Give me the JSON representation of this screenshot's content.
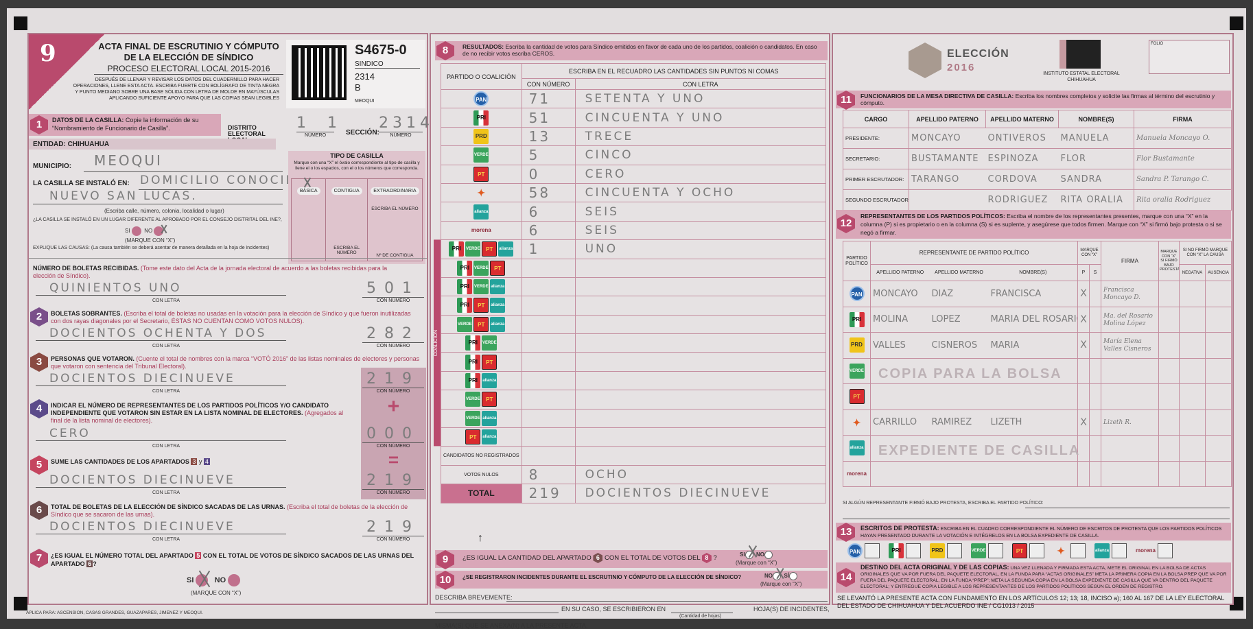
{
  "header": {
    "acta_number": "9",
    "title_line1": "ACTA FINAL DE ESCRUTINIO Y CÓMPUTO",
    "title_line2": "DE LA ELECCIÓN DE SÍNDICO",
    "subtitle": "PROCESO ELECTORAL LOCAL 2015-2016",
    "instructions": "DESPUÉS DE LLENAR Y REVISAR LOS DATOS DEL CUADERNILLO PARA HACER OPERACIONES, LLENE ESTA ACTA. ESCRIBA FUERTE CON BOLÍGRAFO DE TINTA NEGRA Y PUNTO MEDIANO SOBRE UNA BASE SÓLIDA CON LETRA DE MOLDE EN MAYÚSCULAS APLICANDO SUFICIENTE APOYO PARA QUE LAS COPIAS SEAN LEGIBLES",
    "code": "S4675-0",
    "election": "SINDICO",
    "section_code": "2314",
    "casilla_type": "B",
    "municipality_code": "MEOQUI"
  },
  "s1": {
    "num": "1",
    "title": "DATOS DE LA CASILLA:",
    "text": "Copie la información de su “Nombramiento de Funcionario de Casilla”.",
    "distrito_label": "DISTRITO ELECTORAL LOCAL:",
    "distrito": "1 1",
    "numero_caption": "NÚMERO",
    "seccion_label": "SECCIÓN:",
    "seccion": "2314",
    "entidad_label": "ENTIDAD:",
    "entidad": "CHIHUAHUA",
    "municipio_label": "MUNICIPIO:",
    "municipio": "MEOQUI",
    "instalo_label": "LA CASILLA SE INSTALÓ EN:",
    "instalo_line1": "DOMICILIO CONOCIDO",
    "instalo_line2": "NUEVO SAN LUCAS.",
    "address_hint": "(Escriba calle, número, colonia, localidad o lugar)",
    "diferente_q": "¿LA CASILLA SE INSTALÓ EN UN LUGAR DIFERENTE AL APROBADO POR EL CONSEJO DISTRITAL DEL INE?,",
    "si": "SI",
    "no": "NO",
    "marque": "(MARQUE CON “X”)",
    "selected": "NO",
    "explique": "EXPLIQUE LAS CAUSAS:",
    "explique_hint": "(La causa también se deberá asentar de manera detallada en la hoja de incidentes)",
    "tipo_title": "TIPO DE CASILLA",
    "tipo_hint": "Marque con una “X” el óvalo correspondiente al tipo de casilla y llene el o los espacios, con el o los números que corresponda.",
    "tipo_basica": "BÁSICA",
    "tipo_contigua": "CONTIGUA",
    "tipo_extra": "EXTRAORDINARIA",
    "tipo_selected": "BÁSICA",
    "escriba_numero": "ESCRIBA EL NÚMERO",
    "escriba_numero2": "ESCRIBA EL NÚMERO",
    "n_contigua": "Nº DE CONTIGUA"
  },
  "con_letra": "CON LETRA",
  "con_numero": "CON NÚMERO",
  "boletas": {
    "title": "NÚMERO DE BOLETAS RECIBIDAS.",
    "note": "(Tome este dato del Acta de la jornada electoral de acuerdo a las boletas recibidas para la elección de Síndico).",
    "letra": "QUINIENTOS UNO",
    "numero": "501"
  },
  "s2": {
    "num": "2",
    "title": "BOLETAS SOBRANTES.",
    "note": "(Escriba el total de boletas no usadas en la votación para la elección de Síndico y que fueron inutilizadas con dos rayas diagonales por el Secretario, ÉSTAS NO CUENTAN COMO VOTOS NULOS).",
    "letra": "DOCIENTOS OCHENTA Y DOS",
    "numero": "282"
  },
  "s3": {
    "num": "3",
    "title": "PERSONAS QUE VOTARON.",
    "note": "(Cuente el total de nombres con la marca “VOTÓ 2016” de las listas nominales de electores y personas que votaron con sentencia del Tribunal Electoral).",
    "letra": "DOCIENTOS DIECINUEVE",
    "numero": "219"
  },
  "s4": {
    "num": "4",
    "title": "INDICAR EL NÚMERO DE REPRESENTANTES DE LOS PARTIDOS POLÍTICOS Y/O CANDIDATO INDEPENDIENTE QUE VOTARON SIN ESTAR EN LA LISTA NOMINAL DE ELECTORES.",
    "note": "(Agregados al final de la lista nominal de electores).",
    "letra": "CERO",
    "numero": "000"
  },
  "s5": {
    "num": "5",
    "title": "SUME LAS CANTIDADES DE LOS APARTADOS",
    "ref_a": "3",
    "and": "y",
    "ref_b": "4",
    "letra": "DOCIENTOS DIECINUEVE",
    "numero": "219"
  },
  "s6": {
    "num": "6",
    "title": "TOTAL DE BOLETAS DE LA ELECCIÓN DE SÍNDICO SACADAS DE LAS URNAS.",
    "note": "(Escriba el total de boletas de la elección de Síndico que se sacaron de las urnas).",
    "letra": "DOCIENTOS DIECINUEVE",
    "numero": "219"
  },
  "s7": {
    "num": "7",
    "q1": "¿ES IGUAL EL NÚMERO TOTAL DEL APARTADO",
    "ref_a": "5",
    "q2": "CON EL TOTAL DE VOTOS DE SÍNDICO SACADOS DE LAS URNAS DEL APARTADO",
    "ref_b": "6",
    "q3": "?",
    "si": "SI",
    "no": "NO",
    "marque": "(MARQUE CON “X”)",
    "selected": "SI"
  },
  "calc": {
    "plus": "+",
    "equals": "="
  },
  "footer_left": "APLICA PARA: ASCENSION, CASAS GRANDES, GUAZAPARES, JIMENEZ Y MEOQUI.",
  "s8": {
    "num": "8",
    "title": "RESULTADOS:",
    "text": "Escriba la cantidad de votos para Síndico emitidos en favor de cada uno de los partidos, coalición o candidatos. En caso de no recibir votos escriba CEROS.",
    "col_party": "PARTIDO O COALICIÓN",
    "col_instr": "ESCRIBA EN EL RECUADRO LAS CANTIDADES SIN PUNTOS NI COMAS",
    "col_num": "CON NÚMERO",
    "col_letra": "CON LETRA",
    "coalicion_label": "COALICIÓN",
    "rows": [
      {
        "parties": [
          "pan"
        ],
        "numero": "71",
        "letra": "SETENTA Y UNO"
      },
      {
        "parties": [
          "pri"
        ],
        "numero": "51",
        "letra": "CINCUENTA Y UNO"
      },
      {
        "parties": [
          "prd"
        ],
        "numero": "13",
        "letra": "TRECE"
      },
      {
        "parties": [
          "verde"
        ],
        "numero": "5",
        "letra": "CINCO"
      },
      {
        "parties": [
          "pt"
        ],
        "numero": "0",
        "letra": "CERO"
      },
      {
        "parties": [
          "mc"
        ],
        "numero": "58",
        "letra": "CINCUENTA Y OCHO"
      },
      {
        "parties": [
          "na"
        ],
        "numero": "6",
        "letra": "SEIS"
      },
      {
        "parties": [
          "morena"
        ],
        "numero": "6",
        "letra": "SEIS"
      },
      {
        "parties": [
          "pri",
          "verde",
          "pt",
          "na"
        ],
        "numero": "1",
        "letra": "UNO",
        "coalition": true
      },
      {
        "parties": [
          "pri",
          "verde",
          "pt"
        ],
        "numero": "",
        "letra": "",
        "coalition": true
      },
      {
        "parties": [
          "pri",
          "verde",
          "na"
        ],
        "numero": "",
        "letra": "",
        "coalition": true
      },
      {
        "parties": [
          "pri",
          "pt",
          "na"
        ],
        "numero": "",
        "letra": "",
        "coalition": true
      },
      {
        "parties": [
          "verde",
          "pt",
          "na"
        ],
        "numero": "",
        "letra": "",
        "coalition": true
      },
      {
        "parties": [
          "pri",
          "verde"
        ],
        "numero": "",
        "letra": "",
        "coalition": true
      },
      {
        "parties": [
          "pri",
          "pt"
        ],
        "numero": "",
        "letra": "",
        "coalition": true
      },
      {
        "parties": [
          "pri",
          "na"
        ],
        "numero": "",
        "letra": "",
        "coalition": true
      },
      {
        "parties": [
          "verde",
          "pt"
        ],
        "numero": "",
        "letra": "",
        "coalition": true
      },
      {
        "parties": [
          "verde",
          "na"
        ],
        "numero": "",
        "letra": "",
        "coalition": true
      },
      {
        "parties": [
          "pt",
          "na"
        ],
        "numero": "",
        "letra": "",
        "coalition": true
      },
      {
        "label": "CANDIDATOS NO REGISTRADOS",
        "numero": "",
        "letra": ""
      },
      {
        "label": "VOTOS NULOS",
        "numero": "8",
        "letra": "OCHO"
      },
      {
        "label": "TOTAL",
        "numero": "219",
        "letra": "DOCIENTOS DIECINUEVE",
        "total": true
      }
    ]
  },
  "parties": {
    "pan": {
      "text": "PAN",
      "color": "#2560a8"
    },
    "pri": {
      "text": "PRI",
      "color": "#2e9a56"
    },
    "prd": {
      "text": "PRD",
      "color": "#f0c419"
    },
    "verde": {
      "text": "VERDE",
      "color": "#3ba45d"
    },
    "pt": {
      "text": "PT",
      "color": "#d92b2f"
    },
    "mc": {
      "text": "✦",
      "color": "#e05a1f"
    },
    "na": {
      "text": "alianza",
      "color": "#23a39c"
    },
    "morena": {
      "text": "morena",
      "color": "#8c2a3a"
    }
  },
  "s9": {
    "num": "9",
    "q1": "¿ES IGUAL LA CANTIDAD DEL APARTADO",
    "ref_a": "6",
    "q2": "CON EL TOTAL DE VOTOS DEL",
    "ref_b": "8",
    "q3": "?",
    "si": "SI",
    "no": "NO",
    "marque": "(Marque con “X”)",
    "selected": "SI"
  },
  "s10": {
    "num": "10",
    "q": "¿SE REGISTRARON INCIDENTES DURANTE EL ESCRUTINIO Y CÓMPUTO DE LA ELECCIÓN DE SÍNDICO?",
    "no": "NO",
    "si": "SÍ",
    "marque": "(Marque con “X”)",
    "selected": "NO",
    "describa": "DESCRIBA BREVEMENTE:",
    "en_su_caso": "EN SU CASO, SE ESCRIBIERON EN",
    "hojas": "HOJA(S) DE INCIDENTES,",
    "cantidad": "(Cantidad de hojas)",
    "misma": "MISMA(S) QUE SE ANEXA(N) A LA PRESENTE ACTA."
  },
  "logos": {
    "eleccion": "ELECCIÓN",
    "year": "2016",
    "iee_line1": "INSTITUTO ESTATAL ELECTORAL",
    "iee_line2": "CHIHUAHUA",
    "folio": "FOLIO"
  },
  "s11": {
    "num": "11",
    "title": "FUNCIONARIOS DE LA MESA DIRECTIVA DE CASILLA:",
    "text": "Escriba los nombres completos y solicite las firmas al término del escrutinio y cómputo.",
    "headers": [
      "CARGO",
      "APELLIDO PATERNO",
      "APELLIDO MATERNO",
      "NOMBRE(S)",
      "FIRMA"
    ],
    "rows": [
      {
        "cargo": "PRESIDENTE:",
        "paterno": "MONCAYO",
        "materno": "ONTIVEROS",
        "nombre": "MANUELA",
        "firma": "Manuela Moncayo O."
      },
      {
        "cargo": "SECRETARIO:",
        "paterno": "BUSTAMANTE",
        "materno": "ESPINOZA",
        "nombre": "FLOR",
        "firma": "Flor Bustamante"
      },
      {
        "cargo": "PRIMER ESCRUTADOR:",
        "paterno": "TARANGO",
        "materno": "CORDOVA",
        "nombre": "SANDRA",
        "firma": "Sandra P. Tarango C."
      },
      {
        "cargo": "SEGUNDO ESCRUTADOR:",
        "paterno": "",
        "materno": "RODRIGUEZ",
        "nombre": "RITA ORALIA",
        "firma": "Rita oralia Rodriguez"
      }
    ]
  },
  "s12": {
    "num": "12",
    "title": "REPRESENTANTES DE LOS PARTIDOS POLÍTICOS:",
    "text": "Escriba el nombre de los representantes presentes, marque con una “X” en la columna (P) si es propietario o en la columna (S) si es suplente, y asegúrese que todos firmen. Marque con “X” si firmó bajo protesta o si se negó a firmar.",
    "h_partido": "PARTIDO POLÍTICO",
    "h_rep": "REPRESENTANTE DE PARTIDO POLÍTICO",
    "h_paterno": "APELLIDO PATERNO",
    "h_materno": "APELLIDO MATERNO",
    "h_nombre": "NOMBRE(S)",
    "h_marque": "MARQUE CON “X”",
    "h_p": "P",
    "h_s": "S",
    "h_firma": "FIRMA",
    "h_protesta": "MARQUE CON “X” SI FIRMÓ BAJO PROTESTA",
    "h_nofirmo": "SI NO FIRMÓ MARQUE CON “X” LA CAUSA",
    "h_negativa": "NEGATIVA",
    "h_ausencia": "AUSENCIA",
    "rows": [
      {
        "party": "pan",
        "paterno": "MONCAYO",
        "materno": "DIAZ",
        "nombre": "FRANCISCA",
        "p": "X",
        "s": "",
        "firma": "Francisca Moncayo D."
      },
      {
        "party": "pri",
        "paterno": "MOLINA",
        "materno": "LOPEZ",
        "nombre": "MARIA DEL ROSARIO",
        "p": "X",
        "s": "",
        "firma": "Ma. del Rosario Molina López"
      },
      {
        "party": "prd",
        "paterno": "VALLES",
        "materno": "CISNEROS",
        "nombre": "MARIA",
        "p": "X",
        "s": "",
        "firma": "María Elena Valles Cisneros"
      },
      {
        "party": "verde",
        "paterno": "",
        "materno": "",
        "nombre": "",
        "p": "",
        "s": "",
        "firma": ""
      },
      {
        "party": "pt",
        "paterno": "",
        "materno": "",
        "nombre": "",
        "p": "",
        "s": "",
        "firma": ""
      },
      {
        "party": "mc",
        "paterno": "CARRILLO",
        "materno": "RAMIREZ",
        "nombre": "LIZETH",
        "p": "X",
        "s": "",
        "firma": "Lizeth R."
      },
      {
        "party": "na",
        "paterno": "",
        "materno": "",
        "nombre": "",
        "p": "",
        "s": "",
        "firma": ""
      },
      {
        "party": "morena",
        "paterno": "",
        "materno": "",
        "nombre": "",
        "p": "",
        "s": "",
        "firma": ""
      }
    ],
    "watermark_line1": "COPIA PARA LA BOLSA",
    "watermark_line2": "EXPEDIENTE DE CASILLA",
    "protesta_line": "SI ALGÚN REPRESENTANTE FIRMÓ BAJO PROTESTA, ESCRIBA EL PARTIDO POLÍTICO:"
  },
  "s13": {
    "num": "13",
    "title": "ESCRITOS DE PROTESTA:",
    "text": "ESCRIBA EN EL CUADRO CORRESPONDIENTE EL NÚMERO DE ESCRITOS DE PROTESTA QUE LOS PARTIDOS POLÍTICOS HAYAN PRESENTADO DURANTE LA VOTACIÓN E INTÉGRELOS EN LA BOLSA EXPEDIENTE DE CASILLA.",
    "parties": [
      "pan",
      "pri",
      "prd",
      "verde",
      "pt",
      "mc",
      "na",
      "morena"
    ]
  },
  "s14": {
    "num": "14",
    "title": "DESTINO DEL ACTA ORIGINAL Y DE LAS COPIAS:",
    "text": "UNA VEZ LLENADA Y FIRMADA ESTA ACTA, METE EL ORIGINAL EN LA BOLSA DE ACTAS ORIGINALES QUE VA POR FUERA DEL PAQUETE ELECTORAL, EN LA FUNDA PARA “ACTAS ORIGINALES” META LA PRIMERA COPIA EN LA BOLSA PREP QUE VA POR FUERA DEL PAQUETE ELECTORAL, EN LA FUNDA “PREP”; META LA SEGUNDA COPIA EN LA BOLSA EXPEDIENTE DE CASILLA QUE VA DENTRO DEL PAQUETE ELECTORAL; Y ENTREGUE COPIA LEGIBLE A LOS REPRESENTANTES DE LOS PARTIDOS POLÍTICOS SEGÚN EL ORDEN DE REGISTRO.",
    "fundamento": "SE LEVANTÓ LA PRESENTE ACTA CON FUNDAMENTO EN LOS ARTÍCULOS 12; 13; 18, INCISO a); 160 AL 167 DE LA LEY ELECTORAL DEL ESTADO DE CHIHUAHUA Y DEL ACUERDO INE / CG1013 / 2015"
  },
  "colors": {
    "accent": "#b94a6d",
    "band": "#d9a7b8",
    "paper": "#e2dedf",
    "handwriting": "#7c7c7c"
  }
}
